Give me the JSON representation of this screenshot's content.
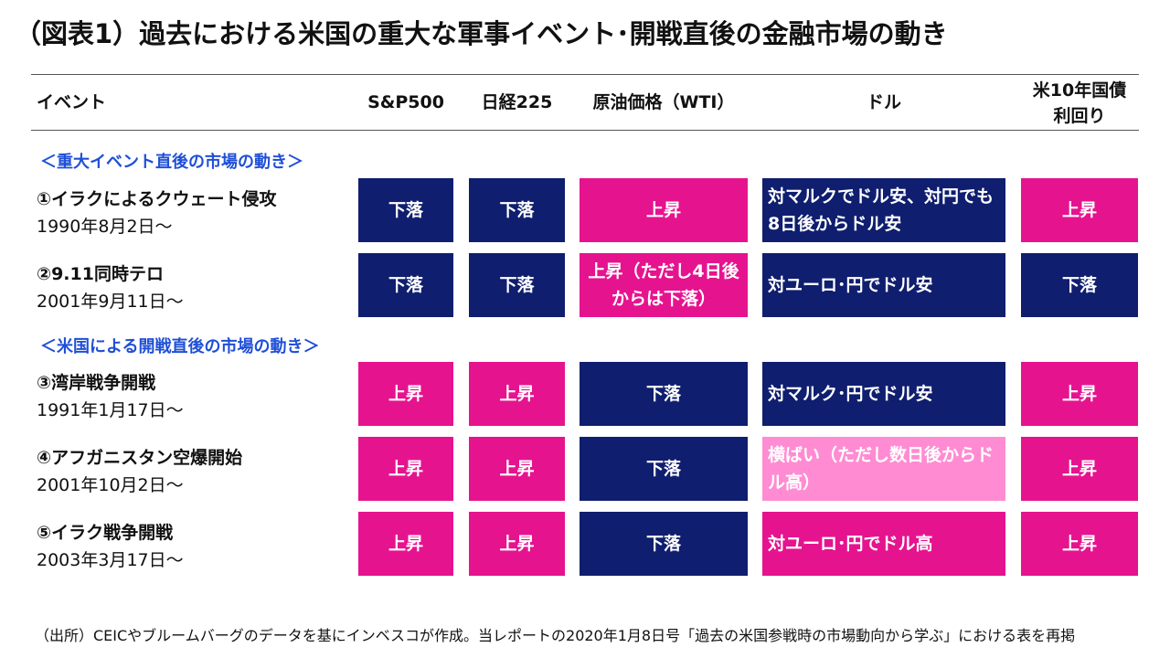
{
  "title": "（図表1）過去における米国の重大な軍事イベント･開戦直後の金融市場の動き",
  "headers": {
    "event": "イベント",
    "sp500": "S&P500",
    "nikkei": "日経225",
    "oil": "原油価格（WTI）",
    "dollar": "ドル",
    "bond_line1": "米10年国債",
    "bond_line2": "利回り"
  },
  "sections": [
    "＜重大イベント直後の市場の動き＞",
    "＜米国による開戦直後の市場の動き＞"
  ],
  "rows": [
    {
      "name": "①イラクによるクウェート侵攻",
      "date": "1990年8月2日～",
      "sp500": "下落",
      "nikkei": "下落",
      "oil": "上昇",
      "dollar": "対マルクでドル安、対円でも8日後からドル安",
      "bond": "上昇"
    },
    {
      "name": "②9.11同時テロ",
      "date": "2001年9月11日～",
      "sp500": "下落",
      "nikkei": "下落",
      "oil": "上昇（ただし4日後からは下落）",
      "dollar": "対ユーロ･円でドル安",
      "bond": "下落"
    },
    {
      "name": "③湾岸戦争開戦",
      "date": "1991年1月17日～",
      "sp500": "上昇",
      "nikkei": "上昇",
      "oil": "下落",
      "dollar": "対マルク･円でドル安",
      "bond": "上昇"
    },
    {
      "name": "④アフガニスタン空爆開始",
      "date": "2001年10月2日～",
      "sp500": "上昇",
      "nikkei": "上昇",
      "oil": "下落",
      "dollar": "横ばい（ただし数日後からドル高）",
      "bond": "上昇"
    },
    {
      "name": "⑤イラク戦争開戦",
      "date": "2003年3月17日～",
      "sp500": "上昇",
      "nikkei": "上昇",
      "oil": "下落",
      "dollar": "対ユーロ･円でドル高",
      "bond": "上昇"
    }
  ],
  "colors": {
    "down_navy": "#0f1e6e",
    "up_pink": "#e6138f",
    "flat_light_pink": "#ff8cd2",
    "section_blue": "#1f4fd6"
  },
  "source": "（出所）CEICやブルームバーグのデータを基にインベスコが作成。当レポートの2020年1月8日号「過去の米国参戦時の市場動向から学ぶ」における表を再掲"
}
